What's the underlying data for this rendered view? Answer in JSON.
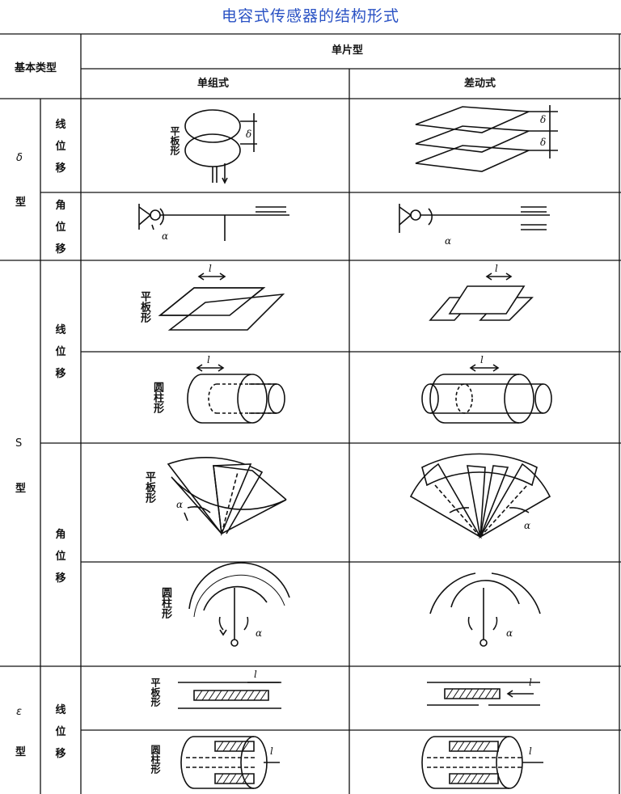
{
  "title": "电容式传感器的结构形式",
  "header": {
    "basic_type": "基本类型",
    "single_piece": "单片型",
    "single_group": "单组式",
    "differential": "差动式"
  },
  "groups": {
    "delta": {
      "type_symbol": "δ",
      "type_suffix": "型",
      "linear": [
        "线",
        "位",
        "移"
      ],
      "angular": [
        "角",
        "位",
        "移"
      ]
    },
    "s": {
      "type_symbol": "S",
      "type_suffix": "型",
      "linear": [
        "线",
        "位",
        "移"
      ],
      "angular": [
        "角",
        "位",
        "移"
      ]
    },
    "epsilon": {
      "type_symbol": "ε",
      "type_suffix": "型",
      "linear": [
        "线",
        "位",
        "移"
      ]
    }
  },
  "shape_labels": {
    "flat": "平板形",
    "cylinder": "圆柱形"
  },
  "symbols": {
    "alpha": "α",
    "delta": "δ",
    "l": "l"
  }
}
